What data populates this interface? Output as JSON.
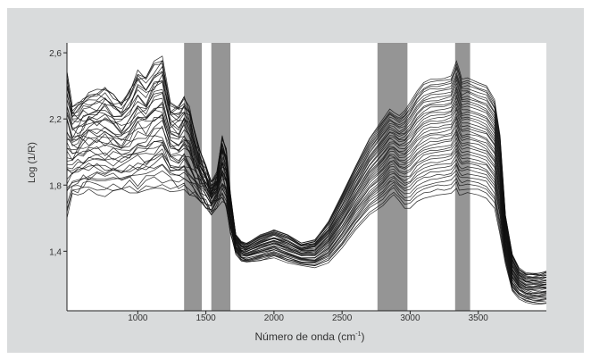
{
  "chart_data": {
    "type": "line",
    "title": "",
    "xlabel": "Número de onda (cm",
    "xlabel_sup": "-1",
    "xlabel_tail": ")",
    "ylabel": "Log (1/R)",
    "xlim": [
      480,
      4000
    ],
    "ylim": [
      1.04,
      2.66
    ],
    "x_ticks": [
      1000,
      1500,
      2000,
      2500,
      3000,
      3500
    ],
    "x_tick_labels": [
      "1000",
      "1500",
      "2000",
      "2500",
      "3000",
      "3500"
    ],
    "y_ticks": [
      1.4,
      1.8,
      2.2,
      2.6
    ],
    "y_tick_labels": [
      "1,4",
      "1,8",
      "2,2",
      "2,6"
    ],
    "highlight_bands": [
      [
        1340,
        1470
      ],
      [
        1540,
        1680
      ],
      [
        2760,
        2980
      ],
      [
        3330,
        3440
      ]
    ],
    "grid": false,
    "legend": "none",
    "series_count": 40,
    "x": [
      480,
      520,
      560,
      600,
      640,
      700,
      760,
      820,
      880,
      940,
      1000,
      1060,
      1120,
      1180,
      1240,
      1300,
      1340,
      1380,
      1420,
      1460,
      1500,
      1540,
      1580,
      1620,
      1650,
      1680,
      1720,
      1760,
      1800,
      1900,
      2000,
      2100,
      2200,
      2300,
      2400,
      2500,
      2600,
      2700,
      2800,
      2850,
      2880,
      2920,
      2960,
      3000,
      3050,
      3100,
      3150,
      3200,
      3250,
      3300,
      3340,
      3360,
      3380,
      3420,
      3500,
      3560,
      3620,
      3660,
      3700,
      3750,
      3800,
      3850,
      3900,
      3950,
      4000
    ],
    "envelope": {
      "upper": [
        2.5,
        2.28,
        2.3,
        2.34,
        2.36,
        2.38,
        2.4,
        2.35,
        2.3,
        2.38,
        2.5,
        2.45,
        2.55,
        2.58,
        2.3,
        2.28,
        2.34,
        2.28,
        2.12,
        2.0,
        1.92,
        1.82,
        1.88,
        2.1,
        2.02,
        1.75,
        1.5,
        1.46,
        1.45,
        1.5,
        1.53,
        1.5,
        1.45,
        1.47,
        1.58,
        1.75,
        1.92,
        2.08,
        2.2,
        2.26,
        2.24,
        2.22,
        2.25,
        2.3,
        2.37,
        2.42,
        2.44,
        2.44,
        2.45,
        2.46,
        2.55,
        2.5,
        2.44,
        2.45,
        2.42,
        2.4,
        2.32,
        2.1,
        1.62,
        1.38,
        1.3,
        1.27,
        1.27,
        1.27,
        1.28
      ],
      "lower": [
        1.6,
        1.72,
        1.74,
        1.75,
        1.76,
        1.74,
        1.73,
        1.75,
        1.76,
        1.75,
        1.74,
        1.76,
        1.76,
        1.78,
        1.76,
        1.75,
        1.76,
        1.74,
        1.72,
        1.7,
        1.66,
        1.62,
        1.66,
        1.7,
        1.66,
        1.5,
        1.38,
        1.34,
        1.33,
        1.34,
        1.36,
        1.33,
        1.31,
        1.3,
        1.33,
        1.42,
        1.53,
        1.62,
        1.67,
        1.72,
        1.74,
        1.7,
        1.66,
        1.66,
        1.7,
        1.72,
        1.73,
        1.74,
        1.74,
        1.75,
        1.78,
        1.74,
        1.74,
        1.75,
        1.74,
        1.72,
        1.66,
        1.5,
        1.32,
        1.16,
        1.11,
        1.09,
        1.08,
        1.08,
        1.08
      ]
    }
  }
}
